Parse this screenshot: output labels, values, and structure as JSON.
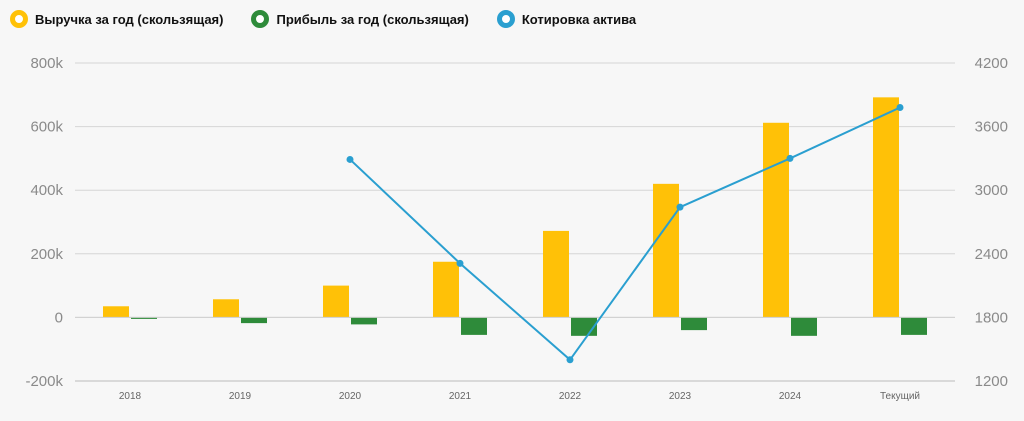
{
  "legend": {
    "items": [
      {
        "label": "Выручка за год (скользящая)",
        "color": "#ffc107"
      },
      {
        "label": "Прибыль за год (скользящая)",
        "color": "#2e8b3a"
      },
      {
        "label": "Котировка актива",
        "color": "#2a9fd0"
      }
    ]
  },
  "chart_data": {
    "type": "bar",
    "categories": [
      "2018",
      "2019",
      "2020",
      "2021",
      "2022",
      "2023",
      "2024",
      "Текущий"
    ],
    "series": [
      {
        "name": "Выручка за год (скользящая)",
        "type": "bar",
        "axis": "left",
        "color": "#ffc107",
        "values": [
          35000,
          57000,
          100000,
          175000,
          272000,
          420000,
          612000,
          692000
        ]
      },
      {
        "name": "Прибыль за год (скользящая)",
        "type": "bar",
        "axis": "left",
        "color": "#2e8b3a",
        "values": [
          -4000,
          -18000,
          -22000,
          -55000,
          -58000,
          -40000,
          -58000,
          -55000
        ]
      },
      {
        "name": "Котировка актива",
        "type": "line",
        "axis": "right",
        "color": "#2a9fd0",
        "values": [
          null,
          null,
          3290,
          2310,
          1400,
          2840,
          3300,
          3780
        ]
      }
    ],
    "y_left": {
      "ylim": [
        -200000,
        800000
      ],
      "ticks": [
        -200000,
        0,
        200000,
        400000,
        600000,
        800000
      ],
      "tick_labels": [
        "-200k",
        "0",
        "200k",
        "400k",
        "600k",
        "800k"
      ]
    },
    "y_right": {
      "ylim": [
        1200,
        4200
      ],
      "ticks": [
        1200,
        1800,
        2400,
        3000,
        3600,
        4200
      ],
      "tick_labels": [
        "1200",
        "1800",
        "2400",
        "3000",
        "3600",
        "4200"
      ]
    },
    "grid": true,
    "legend_position": "top-left"
  }
}
